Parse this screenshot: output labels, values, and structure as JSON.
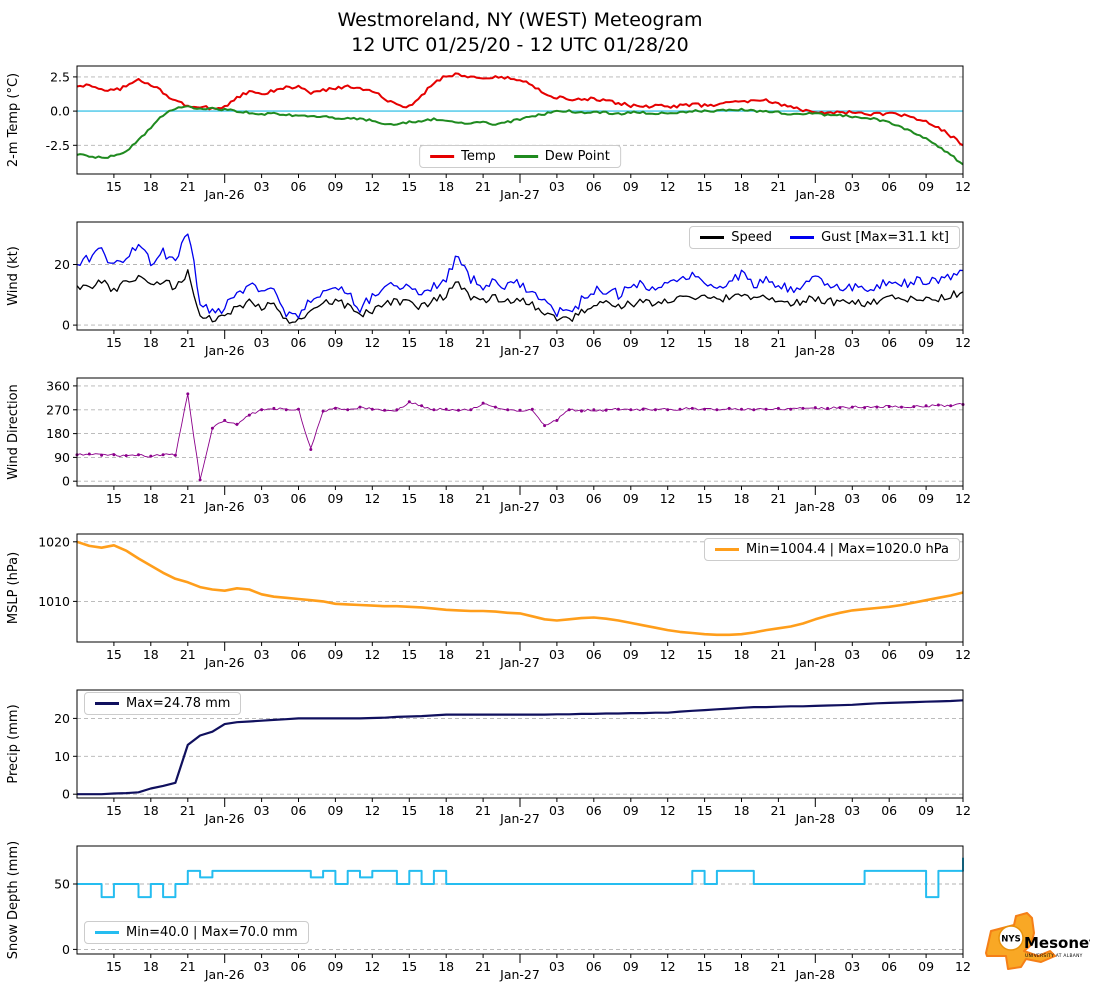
{
  "title": {
    "line1": "Westmoreland, NY (WEST) Meteogram",
    "line2": "12 UTC 01/25/20 - 12 UTC 01/28/20"
  },
  "logo": {
    "org": "NYS",
    "name": "Mesonet",
    "tagline": "UNIVERSITY AT ALBANY"
  },
  "x_axis": {
    "total_hours": 72,
    "ticks": [
      {
        "h": 3,
        "label": "15"
      },
      {
        "h": 6,
        "label": "18"
      },
      {
        "h": 9,
        "label": "21"
      },
      {
        "h": 12,
        "label": "Jan-26",
        "date": true
      },
      {
        "h": 15,
        "label": "03"
      },
      {
        "h": 18,
        "label": "06"
      },
      {
        "h": 21,
        "label": "09"
      },
      {
        "h": 24,
        "label": "12"
      },
      {
        "h": 27,
        "label": "15"
      },
      {
        "h": 30,
        "label": "18"
      },
      {
        "h": 33,
        "label": "21"
      },
      {
        "h": 36,
        "label": "Jan-27",
        "date": true
      },
      {
        "h": 39,
        "label": "03"
      },
      {
        "h": 42,
        "label": "06"
      },
      {
        "h": 45,
        "label": "09"
      },
      {
        "h": 48,
        "label": "12"
      },
      {
        "h": 51,
        "label": "15"
      },
      {
        "h": 54,
        "label": "18"
      },
      {
        "h": 57,
        "label": "21"
      },
      {
        "h": 60,
        "label": "Jan-28",
        "date": true
      },
      {
        "h": 63,
        "label": "03"
      },
      {
        "h": 66,
        "label": "06"
      },
      {
        "h": 69,
        "label": "09"
      },
      {
        "h": 72,
        "label": "12"
      }
    ]
  },
  "chart_data": [
    {
      "type": "line",
      "name": "temperature",
      "ylabel": "2-m Temp (°C)",
      "ylim": [
        -4.6,
        3.3
      ],
      "yticks": [
        {
          "v": 2.5,
          "label": "2.5"
        },
        {
          "v": 0,
          "label": "0.0"
        },
        {
          "v": -2.5,
          "label": "-2.5"
        }
      ],
      "refline": {
        "y": 0,
        "color": "#45c5e8"
      },
      "x_step_hours": 1,
      "legend": {
        "position": "bottom-center",
        "items": [
          {
            "label": "Temp",
            "color": "#e50000"
          },
          {
            "label": "Dew Point",
            "color": "#1f8a1f"
          }
        ]
      },
      "series": [
        {
          "name": "Temp",
          "color": "#e50000",
          "width": 2,
          "jitter": 0.12,
          "values": [
            1.8,
            1.9,
            1.6,
            1.5,
            1.8,
            2.3,
            1.9,
            1.4,
            0.7,
            0.4,
            0.3,
            0.2,
            0.3,
            1.0,
            1.4,
            1.2,
            1.5,
            1.7,
            1.8,
            1.3,
            1.5,
            1.7,
            1.8,
            1.7,
            1.5,
            0.9,
            0.4,
            0.3,
            1.1,
            2.1,
            2.6,
            2.7,
            2.5,
            2.4,
            2.5,
            2.4,
            2.3,
            1.9,
            1.3,
            1.0,
            0.9,
            0.8,
            0.9,
            0.7,
            0.6,
            0.4,
            0.3,
            0.4,
            0.3,
            0.4,
            0.5,
            0.4,
            0.5,
            0.6,
            0.8,
            0.7,
            0.8,
            0.5,
            0.3,
            0.1,
            0.0,
            -0.1,
            -0.1,
            -0.1,
            -0.2,
            -0.2,
            -0.2,
            -0.3,
            -0.5,
            -0.8,
            -1.2,
            -1.8,
            -2.5
          ]
        },
        {
          "name": "Dew Point",
          "color": "#1f8a1f",
          "width": 2,
          "jitter": 0.08,
          "values": [
            -3.2,
            -3.3,
            -3.4,
            -3.3,
            -3.0,
            -2.1,
            -1.2,
            -0.3,
            0.2,
            0.3,
            0.2,
            0.2,
            0.1,
            0.0,
            -0.1,
            -0.2,
            -0.2,
            -0.3,
            -0.3,
            -0.4,
            -0.4,
            -0.5,
            -0.5,
            -0.6,
            -0.7,
            -0.9,
            -1.0,
            -0.8,
            -0.7,
            -0.6,
            -0.7,
            -0.8,
            -0.9,
            -0.8,
            -1.0,
            -0.8,
            -0.6,
            -0.4,
            -0.2,
            0.0,
            0.0,
            -0.1,
            -0.1,
            -0.1,
            -0.2,
            -0.1,
            -0.1,
            -0.2,
            -0.1,
            -0.1,
            0.0,
            0.0,
            0.0,
            0.1,
            0.1,
            0.0,
            0.0,
            -0.1,
            -0.2,
            -0.2,
            -0.2,
            -0.3,
            -0.3,
            -0.4,
            -0.5,
            -0.6,
            -0.8,
            -1.2,
            -1.6,
            -2.0,
            -2.6,
            -3.2,
            -3.9
          ]
        }
      ]
    },
    {
      "type": "line",
      "name": "wind",
      "ylabel": "Wind (kt)",
      "ylim": [
        -1.6,
        34
      ],
      "yticks": [
        {
          "v": 20,
          "label": "20"
        },
        {
          "v": 0,
          "label": "0"
        }
      ],
      "x_step_hours": 1,
      "legend": {
        "position": "top-right",
        "items": [
          {
            "label": "Speed",
            "color": "#000000"
          },
          {
            "label": "Gust [Max=31.1 kt]",
            "color": "#0000ee"
          }
        ]
      },
      "series": [
        {
          "name": "Speed",
          "color": "#000000",
          "width": 1.3,
          "jitter": 1.3,
          "values": [
            13,
            12,
            15,
            11,
            14,
            16,
            13,
            15,
            12,
            17,
            4,
            2,
            3,
            6,
            8,
            6,
            7,
            2,
            1,
            4,
            7,
            8,
            6,
            3,
            5,
            7,
            8,
            7,
            6,
            8,
            10,
            14,
            9,
            8,
            9,
            8,
            9,
            7,
            4,
            2,
            2,
            4,
            6,
            7,
            6,
            7,
            8,
            7,
            8,
            9,
            10,
            9,
            8,
            9,
            10,
            8,
            9,
            8,
            7,
            8,
            9,
            8,
            7,
            8,
            7,
            8,
            9,
            8,
            9,
            8,
            9,
            10,
            11
          ]
        },
        {
          "name": "Gust",
          "color": "#0000ee",
          "width": 1.3,
          "jitter": 1.8,
          "values": [
            20,
            22,
            24,
            19,
            23,
            27,
            21,
            24,
            20,
            31,
            8,
            4,
            6,
            10,
            13,
            11,
            12,
            4,
            2,
            8,
            12,
            13,
            10,
            6,
            9,
            12,
            13,
            12,
            11,
            13,
            16,
            23,
            15,
            13,
            14,
            13,
            14,
            11,
            8,
            4,
            4,
            8,
            11,
            12,
            10,
            12,
            14,
            12,
            13,
            15,
            17,
            15,
            13,
            15,
            17,
            13,
            15,
            13,
            12,
            13,
            15,
            14,
            12,
            13,
            12,
            13,
            15,
            13,
            15,
            13,
            15,
            16,
            18
          ]
        }
      ]
    },
    {
      "type": "scatter",
      "name": "wind-direction",
      "ylabel": "Wind Direction",
      "ylim": [
        -18,
        390
      ],
      "yticks": [
        {
          "v": 360,
          "label": "360"
        },
        {
          "v": 270,
          "label": "270"
        },
        {
          "v": 180,
          "label": "180"
        },
        {
          "v": 90,
          "label": "90"
        },
        {
          "v": 0,
          "label": "0"
        }
      ],
      "x_step_hours": 1,
      "series": [
        {
          "name": "Direction",
          "color": "#8b008b",
          "width": 0.9,
          "jitter": 5,
          "markers": true,
          "values": [
            100,
            103,
            98,
            100,
            97,
            100,
            95,
            100,
            98,
            330,
            5,
            200,
            230,
            215,
            250,
            270,
            275,
            270,
            272,
            120,
            265,
            275,
            270,
            280,
            272,
            268,
            270,
            300,
            285,
            270,
            272,
            268,
            270,
            295,
            280,
            270,
            268,
            272,
            210,
            230,
            270,
            265,
            270,
            268,
            272,
            270,
            272,
            270,
            270,
            272,
            275,
            272,
            270,
            275,
            272,
            270,
            272,
            275,
            272,
            275,
            278,
            275,
            278,
            280,
            278,
            280,
            282,
            280,
            282,
            285,
            288,
            285,
            290
          ]
        }
      ]
    },
    {
      "type": "line",
      "name": "mslp",
      "ylabel": "MSLP (hPa)",
      "ylim": [
        1003.2,
        1021.3
      ],
      "yticks": [
        {
          "v": 1020,
          "label": "1020"
        },
        {
          "v": 1010,
          "label": "1010"
        }
      ],
      "x_step_hours": 1,
      "legend": {
        "position": "top-right",
        "items": [
          {
            "label": "Min=1004.4 | Max=1020.0 hPa",
            "color": "#ff9e1b"
          }
        ]
      },
      "series": [
        {
          "name": "MSLP",
          "color": "#ff9e1b",
          "width": 2.6,
          "jitter": 0,
          "values": [
            1020.0,
            1019.3,
            1019.0,
            1019.4,
            1018.5,
            1017.2,
            1016.0,
            1014.8,
            1013.8,
            1013.2,
            1012.4,
            1012.0,
            1011.8,
            1012.2,
            1012.0,
            1011.2,
            1010.8,
            1010.6,
            1010.4,
            1010.2,
            1010.0,
            1009.6,
            1009.5,
            1009.4,
            1009.3,
            1009.2,
            1009.2,
            1009.1,
            1009.0,
            1008.8,
            1008.6,
            1008.5,
            1008.4,
            1008.4,
            1008.3,
            1008.1,
            1008.0,
            1007.5,
            1007.0,
            1006.8,
            1007.0,
            1007.2,
            1007.3,
            1007.1,
            1006.8,
            1006.4,
            1006.0,
            1005.6,
            1005.2,
            1004.9,
            1004.7,
            1004.5,
            1004.4,
            1004.4,
            1004.5,
            1004.8,
            1005.2,
            1005.5,
            1005.8,
            1006.3,
            1007.0,
            1007.6,
            1008.1,
            1008.5,
            1008.7,
            1008.9,
            1009.1,
            1009.4,
            1009.8,
            1010.2,
            1010.6,
            1011.0,
            1011.5
          ]
        }
      ]
    },
    {
      "type": "line",
      "name": "precip",
      "ylabel": "Precip (mm)",
      "ylim": [
        -1,
        27.5
      ],
      "yticks": [
        {
          "v": 20,
          "label": "20"
        },
        {
          "v": 10,
          "label": "10"
        },
        {
          "v": 0,
          "label": "0"
        }
      ],
      "x_step_hours": 1,
      "legend": {
        "position": "top-left",
        "items": [
          {
            "label": "Max=24.78 mm",
            "color": "#10105e"
          }
        ]
      },
      "series": [
        {
          "name": "Precip",
          "color": "#10105e",
          "width": 2.2,
          "jitter": 0,
          "values": [
            0,
            0,
            0,
            0.2,
            0.3,
            0.5,
            1.5,
            2.2,
            3.0,
            13.0,
            15.5,
            16.5,
            18.5,
            19.0,
            19.2,
            19.4,
            19.6,
            19.8,
            20.0,
            20.0,
            20.0,
            20.0,
            20.0,
            20.0,
            20.1,
            20.2,
            20.4,
            20.5,
            20.6,
            20.8,
            21.0,
            21.0,
            21.0,
            21.0,
            21.0,
            21.0,
            21.0,
            21.0,
            21.0,
            21.1,
            21.1,
            21.2,
            21.2,
            21.3,
            21.3,
            21.4,
            21.4,
            21.5,
            21.5,
            21.8,
            22.0,
            22.2,
            22.4,
            22.6,
            22.8,
            23.0,
            23.0,
            23.1,
            23.2,
            23.2,
            23.3,
            23.4,
            23.5,
            23.6,
            23.8,
            24.0,
            24.1,
            24.2,
            24.3,
            24.4,
            24.5,
            24.6,
            24.78
          ]
        }
      ]
    },
    {
      "type": "line",
      "name": "snow-depth",
      "ylabel": "Snow Depth (mm)",
      "ylim": [
        -3.5,
        79
      ],
      "yticks": [
        {
          "v": 50,
          "label": "50"
        },
        {
          "v": 0,
          "label": "0"
        }
      ],
      "x_step_hours": 1,
      "step": true,
      "legend": {
        "position": "bottom-left",
        "items": [
          {
            "label": "Min=40.0 | Max=70.0 mm",
            "color": "#25bdf0"
          }
        ]
      },
      "series": [
        {
          "name": "Snow Depth",
          "color": "#25bdf0",
          "width": 2,
          "jitter": 0,
          "values": [
            50,
            50,
            40,
            50,
            50,
            40,
            50,
            40,
            50,
            60,
            55,
            60,
            60,
            60,
            60,
            60,
            60,
            60,
            60,
            55,
            60,
            50,
            60,
            55,
            60,
            60,
            50,
            60,
            50,
            60,
            50,
            50,
            50,
            50,
            50,
            50,
            50,
            50,
            50,
            50,
            50,
            50,
            50,
            50,
            50,
            50,
            50,
            50,
            50,
            50,
            60,
            50,
            60,
            60,
            60,
            50,
            50,
            50,
            50,
            50,
            50,
            50,
            50,
            50,
            60,
            60,
            60,
            60,
            60,
            40,
            60,
            60,
            70
          ]
        }
      ]
    }
  ]
}
